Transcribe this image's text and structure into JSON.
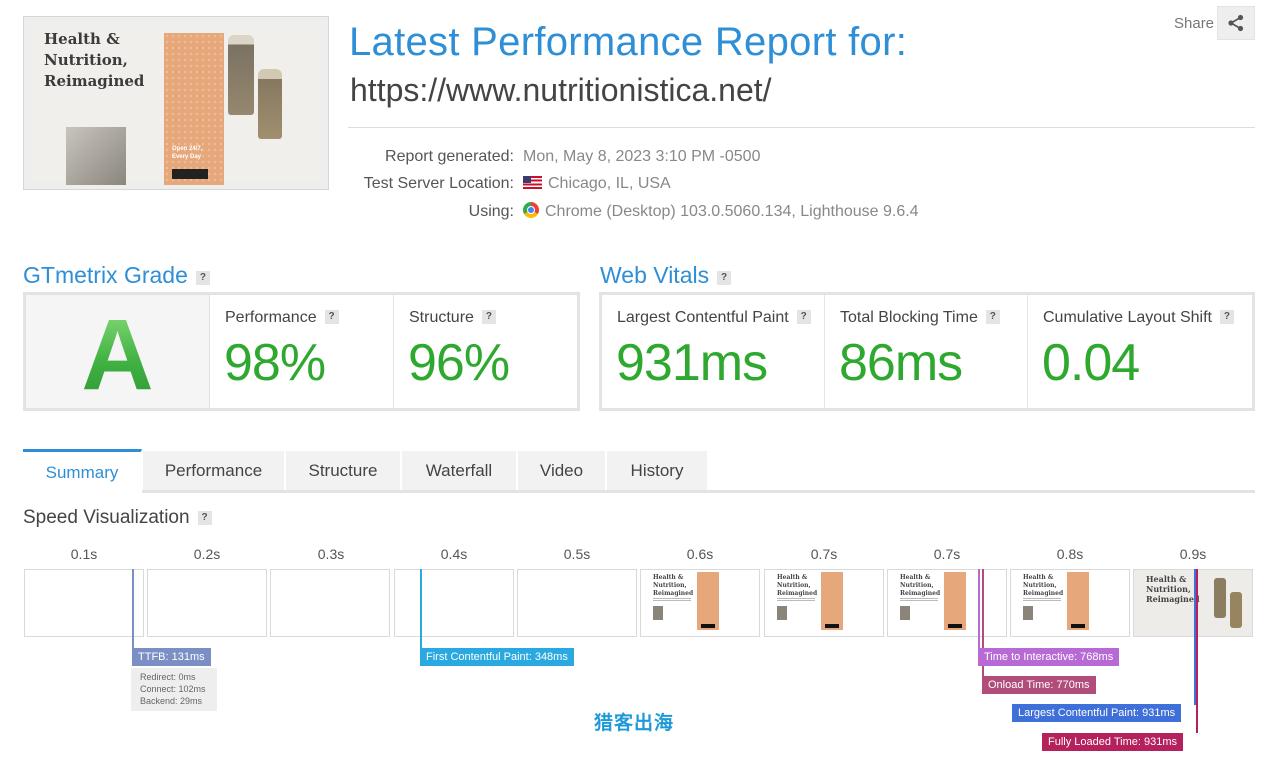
{
  "header": {
    "thumbnail": {
      "title": "Health & Nutrition, Reimagined",
      "tagline": "Open 24/7, Every Day"
    },
    "title": "Latest Performance Report for:",
    "url": "https://www.nutritionistica.net/",
    "share_label": "Share"
  },
  "meta": {
    "report_generated_label": "Report generated:",
    "report_generated_value": "Mon, May 8, 2023 3:10 PM -0500",
    "location_label": "Test Server Location:",
    "location_value": "Chicago, IL, USA",
    "using_label": "Using:",
    "using_value": "Chrome (Desktop) 103.0.5060.134, Lighthouse 9.6.4"
  },
  "grade": {
    "title": "GTmetrix Grade",
    "letter": "A",
    "performance_label": "Performance",
    "performance_value": "98%",
    "structure_label": "Structure",
    "structure_value": "96%"
  },
  "vitals": {
    "title": "Web Vitals",
    "lcp_label": "Largest Contentful Paint",
    "lcp_value": "931ms",
    "tbt_label": "Total Blocking Time",
    "tbt_value": "86ms",
    "cls_label": "Cumulative Layout Shift",
    "cls_value": "0.04"
  },
  "tabs": [
    {
      "label": "Summary",
      "active": true
    },
    {
      "label": "Performance",
      "active": false
    },
    {
      "label": "Structure",
      "active": false
    },
    {
      "label": "Waterfall",
      "active": false
    },
    {
      "label": "Video",
      "active": false
    },
    {
      "label": "History",
      "active": false
    }
  ],
  "speed": {
    "title": "Speed Visualization",
    "ticks": [
      "0.1s",
      "0.2s",
      "0.3s",
      "0.4s",
      "0.5s",
      "0.6s",
      "0.7s",
      "0.7s",
      "0.8s",
      "0.9s"
    ],
    "markers": {
      "ttfb": "TTFB: 131ms",
      "ttfb_redirect": "Redirect: 0ms",
      "ttfb_connect": "Connect: 102ms",
      "ttfb_backend": "Backend: 29ms",
      "fcp": "First Contentful Paint: 348ms",
      "tti": "Time to Interactive: 768ms",
      "onload": "Onload Time: 770ms",
      "lcp": "Largest Contentful Paint: 931ms",
      "fully_loaded": "Fully Loaded Time: 931ms"
    },
    "colors": {
      "ttfb": "#7b8fc4",
      "fcp": "#2aa9e0",
      "tti": "#b76ad3",
      "onload": "#b14d7a",
      "lcp": "#3f6fd8",
      "fully_loaded": "#b4215c"
    }
  },
  "watermark": "猎客出海",
  "colors": {
    "accent_blue": "#2e8fd6",
    "score_green": "#2fa82f"
  }
}
